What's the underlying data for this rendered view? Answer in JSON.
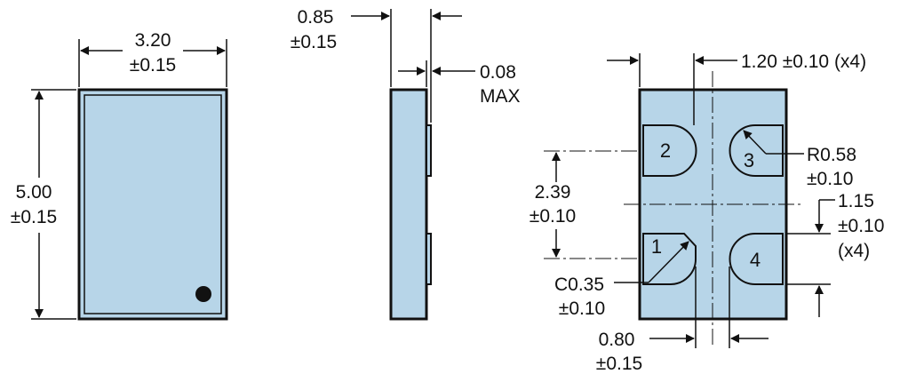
{
  "colors": {
    "fill": "#b7d5e8",
    "stroke": "#111111"
  },
  "top_view": {
    "width_value": "3.20",
    "width_tol": "±0.15",
    "height_value": "5.00",
    "height_tol": "±0.15"
  },
  "side_view": {
    "thickness_value": "0.85",
    "thickness_tol": "±0.15",
    "standoff_value": "0.08",
    "standoff_tol": "MAX"
  },
  "bottom_view": {
    "pad_width": "1.20 ±0.10 (x4)",
    "pad_radius_value": "R0.58",
    "pad_radius_tol": "±0.10",
    "pad_pitch_y_value": "2.39",
    "pad_pitch_y_tol": "±0.10",
    "pad_height_value": "1.15",
    "pad_height_tol": "±0.10",
    "pad_height_count": "(x4)",
    "chamfer_value": "C0.35",
    "chamfer_tol": "±0.10",
    "pad_gap_value": "0.80",
    "pad_gap_tol": "±0.15",
    "pads": [
      "1",
      "2",
      "3",
      "4"
    ]
  }
}
